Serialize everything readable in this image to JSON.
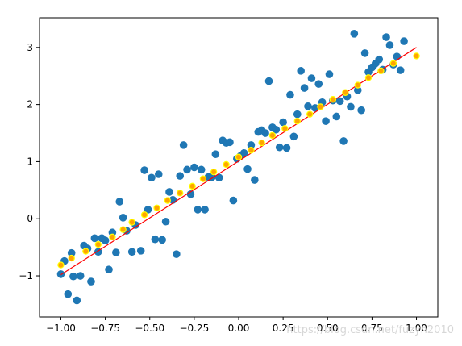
{
  "chart_data": {
    "type": "scatter",
    "xlim": [
      -1.12,
      1.12
    ],
    "ylim": [
      -1.72,
      3.52
    ],
    "x_ticks": [
      -1.0,
      -0.75,
      -0.5,
      -0.25,
      0.0,
      0.25,
      0.5,
      0.75,
      1.0
    ],
    "x_tick_labels": [
      "−1.00",
      "−0.75",
      "−0.50",
      "−0.25",
      "0.00",
      "0.25",
      "0.50",
      "0.75",
      "1.00"
    ],
    "y_ticks": [
      -1,
      0,
      1,
      2,
      3
    ],
    "y_tick_labels": [
      "−1",
      "0",
      "1",
      "2",
      "3"
    ],
    "grid": false,
    "title": "",
    "xlabel": "",
    "ylabel": "",
    "colors": {
      "data_points": "#1f77b4",
      "fit_line": "#ff0000",
      "pred_fill": "#ffa500",
      "pred_edge": "#ffff00"
    },
    "series": [
      {
        "type": "scatter",
        "role": "data_points",
        "points": [
          [
            -1.0,
            -0.97
          ],
          [
            -0.98,
            -0.74
          ],
          [
            -0.96,
            -1.32
          ],
          [
            -0.94,
            -0.6
          ],
          [
            -0.93,
            -1.01
          ],
          [
            -0.91,
            -1.43
          ],
          [
            -0.89,
            -1.0
          ],
          [
            -0.87,
            -0.47
          ],
          [
            -0.85,
            -0.52
          ],
          [
            -0.83,
            -1.1
          ],
          [
            -0.81,
            -0.34
          ],
          [
            -0.79,
            -0.58
          ],
          [
            -0.77,
            -0.34
          ],
          [
            -0.75,
            -0.38
          ],
          [
            -0.73,
            -0.89
          ],
          [
            -0.71,
            -0.24
          ],
          [
            -0.69,
            -0.59
          ],
          [
            -0.67,
            0.3
          ],
          [
            -0.65,
            0.02
          ],
          [
            -0.63,
            -0.21
          ],
          [
            -0.6,
            -0.58
          ],
          [
            -0.58,
            -0.11
          ],
          [
            -0.55,
            -0.56
          ],
          [
            -0.53,
            0.85
          ],
          [
            -0.51,
            0.16
          ],
          [
            -0.49,
            0.72
          ],
          [
            -0.47,
            -0.36
          ],
          [
            -0.45,
            0.78
          ],
          [
            -0.43,
            -0.37
          ],
          [
            -0.41,
            -0.05
          ],
          [
            -0.39,
            0.47
          ],
          [
            -0.37,
            0.33
          ],
          [
            -0.35,
            -0.62
          ],
          [
            -0.33,
            0.75
          ],
          [
            -0.31,
            1.29
          ],
          [
            -0.29,
            0.86
          ],
          [
            -0.27,
            0.43
          ],
          [
            -0.25,
            0.9
          ],
          [
            -0.23,
            0.16
          ],
          [
            -0.21,
            0.86
          ],
          [
            -0.19,
            0.16
          ],
          [
            -0.17,
            0.73
          ],
          [
            -0.15,
            0.73
          ],
          [
            -0.13,
            1.13
          ],
          [
            -0.11,
            0.72
          ],
          [
            -0.09,
            1.37
          ],
          [
            -0.07,
            1.33
          ],
          [
            -0.05,
            1.34
          ],
          [
            -0.03,
            0.32
          ],
          [
            -0.01,
            1.05
          ],
          [
            0.01,
            1.1
          ],
          [
            0.03,
            1.15
          ],
          [
            0.05,
            0.87
          ],
          [
            0.07,
            1.29
          ],
          [
            0.09,
            0.68
          ],
          [
            0.11,
            1.52
          ],
          [
            0.13,
            1.55
          ],
          [
            0.15,
            1.5
          ],
          [
            0.17,
            2.41
          ],
          [
            0.19,
            1.6
          ],
          [
            0.21,
            1.56
          ],
          [
            0.23,
            1.25
          ],
          [
            0.25,
            1.69
          ],
          [
            0.27,
            1.24
          ],
          [
            0.29,
            2.17
          ],
          [
            0.31,
            1.44
          ],
          [
            0.33,
            1.83
          ],
          [
            0.35,
            2.59
          ],
          [
            0.37,
            2.29
          ],
          [
            0.39,
            1.97
          ],
          [
            0.41,
            2.46
          ],
          [
            0.43,
            1.94
          ],
          [
            0.45,
            2.36
          ],
          [
            0.47,
            2.04
          ],
          [
            0.49,
            1.71
          ],
          [
            0.51,
            2.53
          ],
          [
            0.53,
            2.07
          ],
          [
            0.55,
            1.79
          ],
          [
            0.57,
            2.06
          ],
          [
            0.59,
            1.36
          ],
          [
            0.61,
            2.14
          ],
          [
            0.63,
            1.96
          ],
          [
            0.65,
            3.24
          ],
          [
            0.67,
            2.25
          ],
          [
            0.69,
            1.9
          ],
          [
            0.71,
            2.9
          ],
          [
            0.73,
            2.57
          ],
          [
            0.75,
            2.65
          ],
          [
            0.77,
            2.72
          ],
          [
            0.79,
            2.79
          ],
          [
            0.81,
            2.61
          ],
          [
            0.83,
            3.18
          ],
          [
            0.85,
            3.04
          ],
          [
            0.87,
            2.7
          ],
          [
            0.89,
            2.84
          ],
          [
            0.91,
            2.6
          ],
          [
            0.93,
            3.11
          ]
        ]
      },
      {
        "type": "line",
        "role": "fit_line",
        "points": [
          [
            -1.0,
            -0.98
          ],
          [
            1.0,
            3.0
          ]
        ]
      },
      {
        "type": "scatter",
        "role": "predictions",
        "points": [
          [
            -1.0,
            -0.81
          ],
          [
            -0.94,
            -0.69
          ],
          [
            -0.86,
            -0.57
          ],
          [
            -0.79,
            -0.45
          ],
          [
            -0.71,
            -0.32
          ],
          [
            -0.65,
            -0.19
          ],
          [
            -0.6,
            -0.06
          ],
          [
            -0.53,
            0.07
          ],
          [
            -0.46,
            0.19
          ],
          [
            -0.4,
            0.32
          ],
          [
            -0.33,
            0.45
          ],
          [
            -0.26,
            0.57
          ],
          [
            -0.2,
            0.7
          ],
          [
            -0.14,
            0.82
          ],
          [
            -0.07,
            0.95
          ],
          [
            0.0,
            1.08
          ],
          [
            0.07,
            1.2
          ],
          [
            0.13,
            1.33
          ],
          [
            0.19,
            1.46
          ],
          [
            0.26,
            1.58
          ],
          [
            0.33,
            1.71
          ],
          [
            0.4,
            1.83
          ],
          [
            0.46,
            1.96
          ],
          [
            0.53,
            2.09
          ],
          [
            0.6,
            2.21
          ],
          [
            0.67,
            2.34
          ],
          [
            0.73,
            2.47
          ],
          [
            0.8,
            2.59
          ],
          [
            0.87,
            2.72
          ],
          [
            1.0,
            2.85
          ]
        ]
      }
    ]
  },
  "watermark": "https://blog.csdn.net/fuzyn2010"
}
